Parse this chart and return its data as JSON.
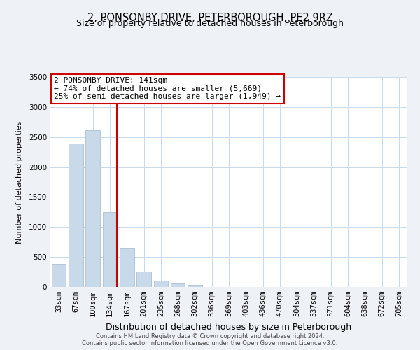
{
  "title": "2, PONSONBY DRIVE, PETERBOROUGH, PE2 9RZ",
  "subtitle": "Size of property relative to detached houses in Peterborough",
  "xlabel": "Distribution of detached houses by size in Peterborough",
  "ylabel": "Number of detached properties",
  "bar_labels": [
    "33sqm",
    "67sqm",
    "100sqm",
    "134sqm",
    "167sqm",
    "201sqm",
    "235sqm",
    "268sqm",
    "302sqm",
    "336sqm",
    "369sqm",
    "403sqm",
    "436sqm",
    "470sqm",
    "504sqm",
    "537sqm",
    "571sqm",
    "604sqm",
    "638sqm",
    "672sqm",
    "705sqm"
  ],
  "bar_values": [
    390,
    2390,
    2610,
    1250,
    640,
    260,
    100,
    55,
    30,
    0,
    0,
    0,
    0,
    0,
    0,
    0,
    0,
    0,
    0,
    0,
    0
  ],
  "bar_color": "#c8d9ea",
  "bar_edge_color": "#a0b8cc",
  "vline_x_index": 3,
  "vline_color": "#cc0000",
  "annotation_line1": "2 PONSONBY DRIVE: 141sqm",
  "annotation_line2": "← 74% of detached houses are smaller (5,669)",
  "annotation_line3": "25% of semi-detached houses are larger (1,949) →",
  "box_edge_color": "#cc0000",
  "ylim": [
    0,
    3500
  ],
  "yticks": [
    0,
    500,
    1000,
    1500,
    2000,
    2500,
    3000,
    3500
  ],
  "footer_line1": "Contains HM Land Registry data © Crown copyright and database right 2024.",
  "footer_line2": "Contains public sector information licensed under the Open Government Licence v3.0.",
  "bg_color": "#eef2f7",
  "plot_bg_color": "#ffffff",
  "grid_color": "#c8d9ea",
  "title_fontsize": 10.5,
  "subtitle_fontsize": 9,
  "xlabel_fontsize": 9,
  "ylabel_fontsize": 8,
  "tick_fontsize": 7.5,
  "annotation_fontsize": 8,
  "footer_fontsize": 6
}
